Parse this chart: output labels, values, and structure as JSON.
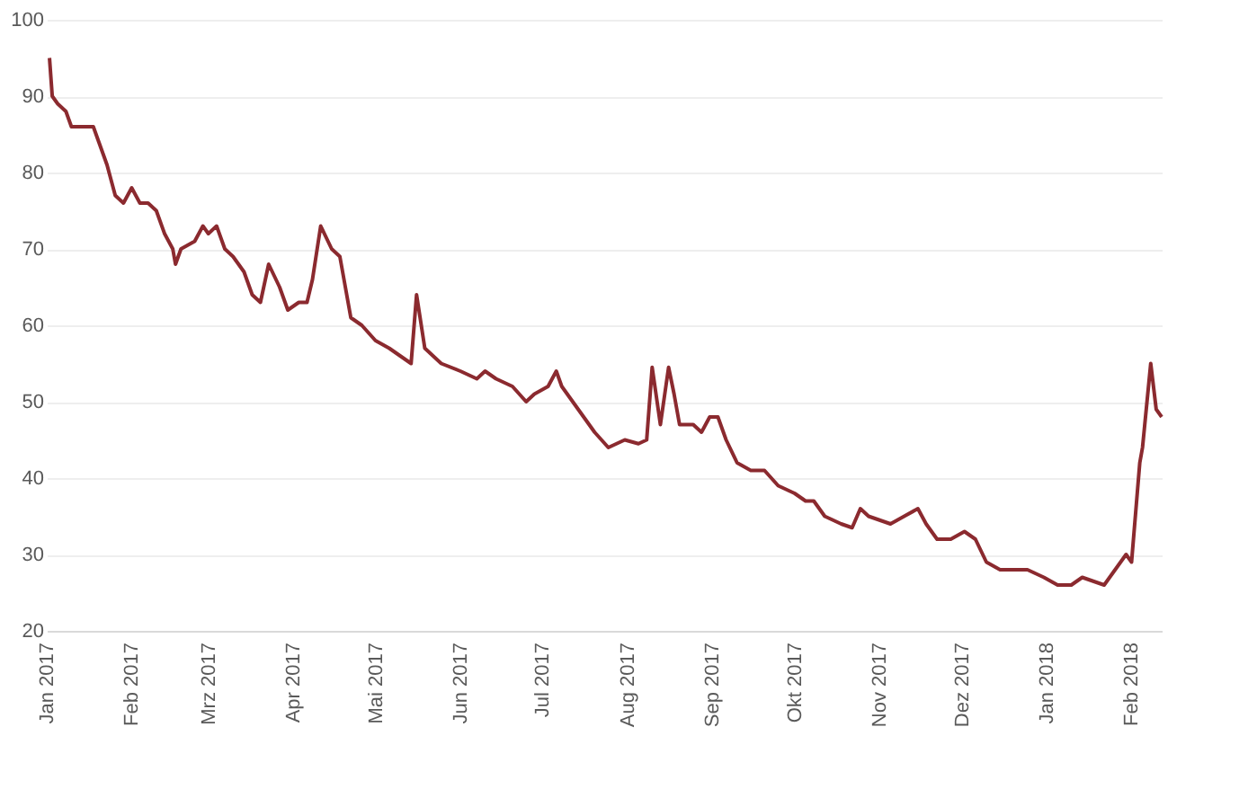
{
  "chart_data": {
    "type": "line",
    "x": [
      "2017-01-02",
      "2017-01-03",
      "2017-01-05",
      "2017-01-08",
      "2017-01-10",
      "2017-01-18",
      "2017-01-20",
      "2017-01-23",
      "2017-01-26",
      "2017-01-29",
      "2017-02-01",
      "2017-02-04",
      "2017-02-07",
      "2017-02-10",
      "2017-02-13",
      "2017-02-16",
      "2017-02-17",
      "2017-02-19",
      "2017-02-24",
      "2017-02-27",
      "2017-03-01",
      "2017-03-04",
      "2017-03-07",
      "2017-03-10",
      "2017-03-14",
      "2017-03-17",
      "2017-03-20",
      "2017-03-23",
      "2017-03-27",
      "2017-03-30",
      "2017-04-03",
      "2017-04-06",
      "2017-04-08",
      "2017-04-11",
      "2017-04-15",
      "2017-04-18",
      "2017-04-22",
      "2017-04-26",
      "2017-05-01",
      "2017-05-06",
      "2017-05-10",
      "2017-05-14",
      "2017-05-16",
      "2017-05-19",
      "2017-05-25",
      "2017-06-01",
      "2017-06-07",
      "2017-06-10",
      "2017-06-14",
      "2017-06-20",
      "2017-06-25",
      "2017-06-28",
      "2017-07-03",
      "2017-07-06",
      "2017-07-08",
      "2017-07-14",
      "2017-07-20",
      "2017-07-25",
      "2017-07-31",
      "2017-08-05",
      "2017-08-08",
      "2017-08-10",
      "2017-08-13",
      "2017-08-16",
      "2017-08-18",
      "2017-08-20",
      "2017-08-25",
      "2017-08-28",
      "2017-08-31",
      "2017-09-03",
      "2017-09-06",
      "2017-09-10",
      "2017-09-15",
      "2017-09-20",
      "2017-09-25",
      "2017-10-01",
      "2017-10-05",
      "2017-10-08",
      "2017-10-12",
      "2017-10-18",
      "2017-10-22",
      "2017-10-25",
      "2017-10-28",
      "2017-11-05",
      "2017-11-10",
      "2017-11-15",
      "2017-11-18",
      "2017-11-22",
      "2017-11-27",
      "2017-12-02",
      "2017-12-06",
      "2017-12-10",
      "2017-12-15",
      "2017-12-25",
      "2017-12-31",
      "2018-01-05",
      "2018-01-10",
      "2018-01-14",
      "2018-01-18",
      "2018-01-22",
      "2018-01-26",
      "2018-01-30",
      "2018-02-01",
      "2018-02-04",
      "2018-02-05",
      "2018-02-08",
      "2018-02-10",
      "2018-02-12"
    ],
    "series": [
      {
        "color": "#8b2a2f",
        "values": [
          95,
          90,
          89,
          88,
          86,
          86,
          84,
          81,
          77,
          76,
          78,
          76,
          76,
          75,
          72,
          70,
          68,
          70,
          71,
          73,
          72,
          73,
          70,
          69,
          67,
          64,
          63,
          68,
          65,
          62,
          63,
          63,
          66,
          73,
          70,
          69,
          61,
          60,
          58,
          57,
          56,
          55,
          64,
          57,
          55,
          54,
          53,
          54,
          53,
          52,
          50,
          51,
          52,
          54,
          52,
          49,
          46,
          44,
          45,
          44.5,
          45,
          54.5,
          47,
          54.5,
          51,
          47,
          47,
          46,
          48,
          48,
          45,
          42,
          41,
          41,
          39,
          38,
          37,
          37,
          35,
          34,
          33.5,
          36,
          35,
          34,
          35,
          36,
          34,
          32,
          32,
          33,
          32,
          29,
          28,
          28,
          27,
          26,
          26,
          27,
          26.5,
          26,
          28,
          30,
          29,
          42,
          44,
          55,
          49,
          48
        ]
      }
    ],
    "ylim": [
      20,
      100
    ],
    "yticks": [
      20,
      30,
      40,
      50,
      60,
      70,
      80,
      90,
      100
    ],
    "xlim": [
      "2017-01-01",
      "2018-02-12"
    ],
    "xticks": [
      {
        "value": "2017-01-01",
        "label": "Jan 2017"
      },
      {
        "value": "2017-02-01",
        "label": "Feb 2017"
      },
      {
        "value": "2017-03-01",
        "label": "Mrz 2017"
      },
      {
        "value": "2017-04-01",
        "label": "Apr 2017"
      },
      {
        "value": "2017-05-01",
        "label": "Mai 2017"
      },
      {
        "value": "2017-06-01",
        "label": "Jun 2017"
      },
      {
        "value": "2017-07-01",
        "label": "Jul 2017"
      },
      {
        "value": "2017-08-01",
        "label": "Aug 2017"
      },
      {
        "value": "2017-09-01",
        "label": "Sep 2017"
      },
      {
        "value": "2017-10-01",
        "label": "Okt 2017"
      },
      {
        "value": "2017-11-01",
        "label": "Nov 2017"
      },
      {
        "value": "2017-12-01",
        "label": "Dez 2017"
      },
      {
        "value": "2018-01-01",
        "label": "Jan 2018"
      },
      {
        "value": "2018-02-01",
        "label": "Feb 2018"
      }
    ],
    "grid": "y",
    "line_style": "solid"
  }
}
